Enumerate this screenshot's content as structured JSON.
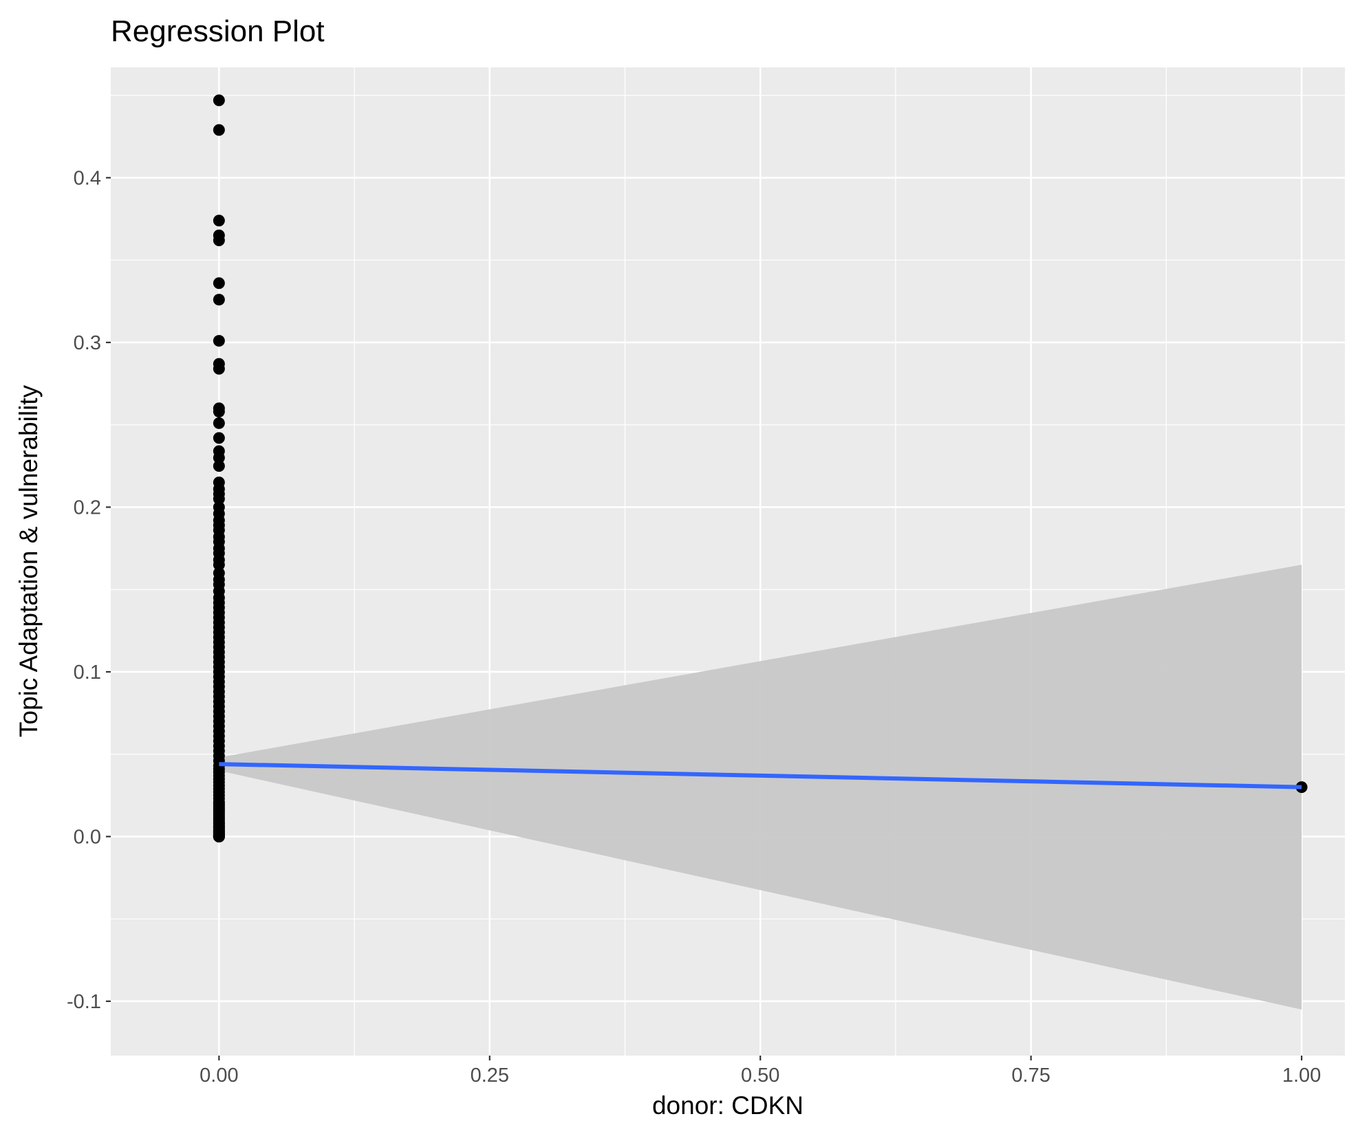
{
  "chart_data": {
    "type": "scatter",
    "title": "Regression Plot",
    "xlabel": "donor: CDKN",
    "ylabel": "Topic Adaptation & vulnerability",
    "xlim": [
      -0.1,
      1.04
    ],
    "ylim": [
      -0.133,
      0.467
    ],
    "x_ticks": [
      0.0,
      0.25,
      0.5,
      0.75,
      1.0
    ],
    "x_tick_labels": [
      "0.00",
      "0.25",
      "0.50",
      "0.75",
      "1.00"
    ],
    "y_ticks": [
      -0.1,
      0.0,
      0.1,
      0.2,
      0.3,
      0.4
    ],
    "y_tick_labels": [
      "-0.1",
      "0.0",
      "0.1",
      "0.2",
      "0.3",
      "0.4"
    ],
    "grid": true,
    "legend": "none",
    "colors": {
      "panel_background": "#ebebeb",
      "grid": "#ffffff",
      "points": "#000000",
      "fit_line": "#3366ff",
      "confidence_band": "#c8c8c8"
    },
    "series": [
      {
        "type": "points",
        "x": [
          0,
          0,
          0,
          0,
          0,
          0,
          0,
          0,
          0,
          0,
          0,
          0,
          0,
          0,
          0,
          0,
          0,
          0,
          0,
          0,
          0,
          0,
          0,
          0,
          0,
          0,
          0,
          0,
          0,
          0,
          0,
          0,
          0,
          0,
          0,
          0,
          0,
          0,
          0,
          0,
          0,
          0,
          0,
          0,
          0,
          0,
          0,
          0,
          0,
          0,
          0,
          0,
          0,
          0,
          0,
          0,
          0,
          0,
          0,
          0,
          0,
          0,
          0,
          0,
          0,
          0,
          0,
          0,
          0,
          0,
          0,
          0,
          0,
          0,
          0,
          0,
          0,
          0,
          0,
          0,
          0,
          0,
          0,
          0,
          0,
          0,
          0,
          0,
          0,
          0,
          0,
          0,
          0,
          0,
          0,
          0,
          0,
          0,
          0,
          0,
          0,
          0,
          0,
          0,
          0,
          0,
          0,
          0,
          0,
          0,
          0,
          0,
          0,
          0,
          1
        ],
        "y": [
          0.447,
          0.429,
          0.374,
          0.365,
          0.362,
          0.336,
          0.326,
          0.301,
          0.287,
          0.284,
          0.26,
          0.258,
          0.251,
          0.242,
          0.234,
          0.23,
          0.225,
          0.215,
          0.211,
          0.208,
          0.205,
          0.2,
          0.196,
          0.192,
          0.189,
          0.186,
          0.182,
          0.179,
          0.175,
          0.172,
          0.168,
          0.165,
          0.16,
          0.156,
          0.153,
          0.149,
          0.145,
          0.142,
          0.139,
          0.136,
          0.133,
          0.13,
          0.127,
          0.124,
          0.121,
          0.118,
          0.115,
          0.112,
          0.109,
          0.106,
          0.103,
          0.1,
          0.097,
          0.094,
          0.091,
          0.088,
          0.085,
          0.082,
          0.079,
          0.076,
          0.073,
          0.07,
          0.067,
          0.064,
          0.061,
          0.058,
          0.055,
          0.052,
          0.049,
          0.046,
          0.043,
          0.041,
          0.039,
          0.037,
          0.035,
          0.033,
          0.031,
          0.029,
          0.027,
          0.025,
          0.023,
          0.021,
          0.019,
          0.017,
          0.015,
          0.013,
          0.011,
          0.009,
          0.008,
          0.007,
          0.006,
          0.005,
          0.004,
          0.003,
          0.002,
          0.001,
          0.0,
          0.0,
          0.0,
          0.0,
          0.0,
          0.0,
          0.001,
          0.002,
          0.003,
          0.004,
          0.006,
          0.008,
          0.01,
          0.012,
          0.014,
          0.016,
          0.018,
          0.02,
          0.03
        ]
      },
      {
        "type": "fit_line",
        "x": [
          0,
          1
        ],
        "y": [
          0.044,
          0.03
        ]
      },
      {
        "type": "confidence_band",
        "x": [
          0,
          1
        ],
        "lower": [
          0.04,
          -0.105
        ],
        "upper": [
          0.048,
          0.165
        ]
      }
    ]
  }
}
